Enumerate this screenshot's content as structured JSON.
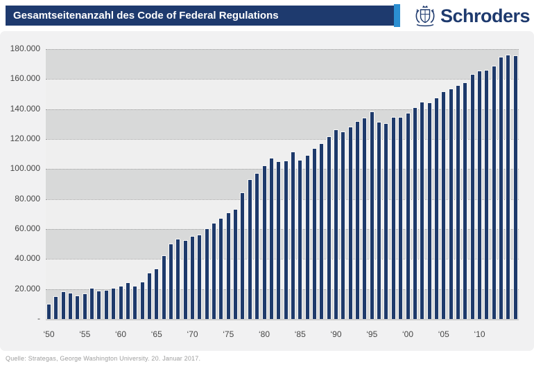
{
  "header": {
    "title": "Gesamtseitenanzahl des Code of Federal Regulations",
    "brand": "Schroders",
    "title_bar_color": "#1e3a6e",
    "accent_color": "#2b8fd2",
    "brand_color": "#1e3a6e"
  },
  "footer": {
    "source": "Quelle: Strategas, George Washington University. 20. Januar 2017."
  },
  "chart_data": {
    "type": "bar",
    "title": "Gesamtseitenanzahl des Code of Federal Regulations",
    "xlabel": "",
    "ylabel": "",
    "ylim": [
      0,
      180000
    ],
    "ytick_interval": 20000,
    "ytick_labels": [
      "180.000",
      "160.000",
      "140.000",
      "120.000",
      "100.000",
      "80.000",
      "60.000",
      "40.000",
      "20.000",
      "-"
    ],
    "xtick_labels": [
      "‘50",
      "‘55",
      "‘60",
      "‘65",
      "‘70",
      "‘75",
      "‘80",
      "‘85",
      "‘90",
      "‘95",
      "‘00",
      "‘05",
      "‘10"
    ],
    "xtick_years": [
      1950,
      1955,
      1960,
      1965,
      1970,
      1975,
      1980,
      1985,
      1990,
      1995,
      2000,
      2005,
      2010
    ],
    "legend": "none",
    "grid": "horizontal-dotted",
    "band_colors": {
      "dark": "#d8d9d9",
      "light": "#efefef"
    },
    "bar_color": "#1e3a6b",
    "bar_outline_color": "#f7f7f7",
    "years": [
      1950,
      1951,
      1952,
      1953,
      1954,
      1955,
      1956,
      1957,
      1958,
      1959,
      1960,
      1961,
      1962,
      1963,
      1964,
      1965,
      1966,
      1967,
      1968,
      1969,
      1970,
      1971,
      1972,
      1973,
      1974,
      1975,
      1976,
      1977,
      1978,
      1979,
      1980,
      1981,
      1982,
      1983,
      1984,
      1985,
      1986,
      1987,
      1988,
      1989,
      1990,
      1991,
      1992,
      1993,
      1994,
      1995,
      1996,
      1997,
      1998,
      1999,
      2000,
      2001,
      2002,
      2003,
      2004,
      2005,
      2006,
      2007,
      2008,
      2009,
      2010,
      2011,
      2012,
      2013,
      2014,
      2015
    ],
    "values": [
      9700,
      14600,
      18000,
      17000,
      15200,
      16500,
      20400,
      18400,
      19100,
      20300,
      21900,
      24000,
      21700,
      24300,
      30300,
      33400,
      42000,
      49700,
      53000,
      52200,
      54800,
      55700,
      59900,
      63700,
      66700,
      70800,
      72700,
      84000,
      93000,
      97000,
      101800,
      106900,
      104800,
      105400,
      111300,
      105500,
      109000,
      113600,
      116800,
      121300,
      126000,
      124500,
      127900,
      131600,
      133700,
      137800,
      131300,
      130200,
      134400,
      134200,
      137300,
      141000,
      144500,
      143800,
      147200,
      151300,
      153400,
      155400,
      157500,
      163000,
      165300,
      165700,
      168300,
      174500,
      175900,
      175300
    ]
  }
}
